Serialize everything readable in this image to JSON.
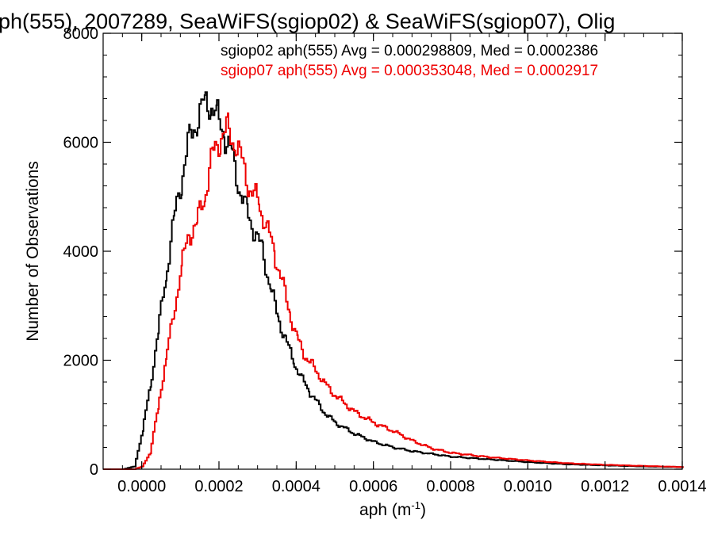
{
  "chart_data": {
    "type": "line",
    "title": "ph(555), 2007289, SeaWiFS(sgiop02) & SeaWiFS(sgiop07), Olig",
    "xlabel": "aph (m",
    "xlabel_sup": "-1",
    "xlabel_close": ")",
    "ylabel": "Number of Observations",
    "xlim": [
      -0.0001,
      0.0014
    ],
    "ylim": [
      0,
      8000
    ],
    "xticks": [
      0.0,
      0.0002,
      0.0004,
      0.0006,
      0.0008,
      0.001,
      0.0012,
      0.0014
    ],
    "xtick_labels": [
      "0.0000",
      "0.0002",
      "0.0004",
      "0.0006",
      "0.0008",
      "0.0010",
      "0.0012",
      "0.0014"
    ],
    "yticks": [
      0,
      2000,
      4000,
      6000,
      8000
    ],
    "ytick_labels": [
      "0",
      "2000",
      "4000",
      "6000",
      "8000"
    ],
    "grid": false,
    "annotations": [
      {
        "text": "sgiop02 aph(555) Avg = 0.000298809, Med = 0.0002386",
        "color": "#000000"
      },
      {
        "text": "sgiop07 aph(555) Avg = 0.000353048, Med = 0.0002917",
        "color": "#ee0000"
      }
    ],
    "series": [
      {
        "color": "#000000",
        "x": [
          -0.0001,
          -5e-05,
          -2e-05,
          0.0,
          2e-05,
          4e-05,
          6e-05,
          8e-05,
          0.0001,
          0.00012,
          0.00014,
          0.00016,
          0.000175,
          0.00019,
          0.00021,
          0.00023,
          0.00025,
          0.00027,
          0.00029,
          0.00031,
          0.00033,
          0.00035,
          0.00037,
          0.00039,
          0.00041,
          0.00043,
          0.00045,
          0.00047,
          0.0005,
          0.00055,
          0.0006,
          0.00065,
          0.0007,
          0.00075,
          0.0008,
          0.0009,
          0.001,
          0.0011,
          0.0012,
          0.0013,
          0.0014
        ],
        "y": [
          0,
          0,
          50,
          700,
          1500,
          2500,
          3500,
          4500,
          5300,
          6000,
          6400,
          6700,
          6750,
          6500,
          6200,
          5800,
          5200,
          4700,
          4400,
          4000,
          3400,
          2800,
          2400,
          2000,
          1700,
          1450,
          1250,
          1050,
          850,
          650,
          500,
          400,
          330,
          280,
          230,
          180,
          130,
          90,
          70,
          50,
          40
        ]
      },
      {
        "color": "#ee0000",
        "x": [
          -0.0001,
          -2e-05,
          0.0,
          2e-05,
          4e-05,
          6e-05,
          8e-05,
          0.0001,
          0.00012,
          0.00014,
          0.00016,
          0.00018,
          0.0002,
          0.00022,
          0.00024,
          0.00026,
          0.00028,
          0.0003,
          0.00032,
          0.00034,
          0.00036,
          0.00038,
          0.0004,
          0.00042,
          0.00044,
          0.00046,
          0.00048,
          0.0005,
          0.00055,
          0.0006,
          0.00065,
          0.0007,
          0.00075,
          0.0008,
          0.0009,
          0.001,
          0.0011,
          0.0012,
          0.0013,
          0.0014
        ],
        "y": [
          0,
          0,
          50,
          300,
          1100,
          2000,
          2800,
          3700,
          4300,
          4500,
          5000,
          5700,
          6100,
          6200,
          6000,
          5600,
          5100,
          4900,
          4500,
          4000,
          3500,
          2900,
          2400,
          2100,
          1900,
          1700,
          1500,
          1350,
          1050,
          850,
          700,
          520,
          380,
          300,
          220,
          160,
          110,
          80,
          60,
          40
        ]
      }
    ]
  }
}
